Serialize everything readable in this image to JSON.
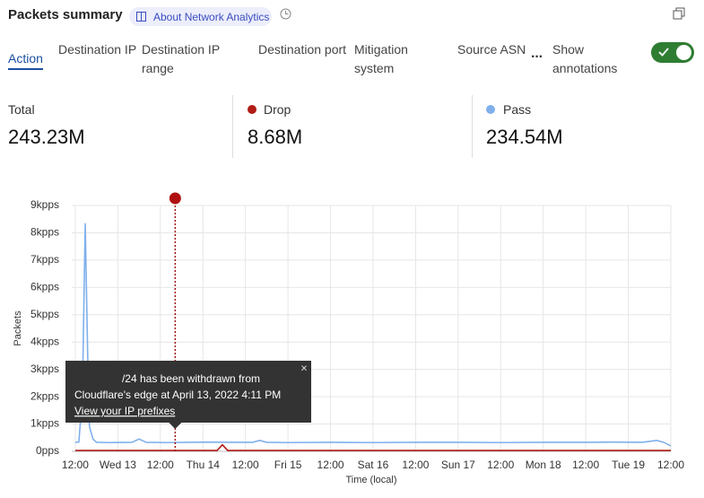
{
  "header": {
    "title": "Packets summary",
    "link": "About Network Analytics"
  },
  "tabs": [
    "Action",
    "Destination IP",
    "Destination IP range",
    "Destination port",
    "Mitigation system",
    "Source ASN"
  ],
  "toggle_label": "Show annotations",
  "summary": {
    "total_label": "Total",
    "total": "243.23M",
    "drop": "8.68M",
    "pass": "234.54M"
  },
  "chart_data": {
    "type": "line",
    "y_label": "Packets",
    "x_label": "Time (local)",
    "xlim": [
      -1,
      168
    ],
    "xticks": [
      {
        "value": 0,
        "label": "12:00"
      },
      {
        "value": 12,
        "label": "Wed 13"
      },
      {
        "value": 24,
        "label": "12:00"
      },
      {
        "value": 36,
        "label": "Thu 14"
      },
      {
        "value": 48,
        "label": "12:00"
      },
      {
        "value": 60,
        "label": "Fri 15"
      },
      {
        "value": 72,
        "label": "12:00"
      },
      {
        "value": 84,
        "label": "Sat 16"
      },
      {
        "value": 96,
        "label": "12:00"
      },
      {
        "value": 108,
        "label": "Sun 17"
      },
      {
        "value": 120,
        "label": "12:00"
      },
      {
        "value": 132,
        "label": "Mon 18"
      },
      {
        "value": 144,
        "label": "12:00"
      },
      {
        "value": 156,
        "label": "Tue 19"
      },
      {
        "value": 168,
        "label": "12:00"
      }
    ],
    "ylim": [
      0,
      9000
    ],
    "yticks": [
      {
        "value": 0,
        "label": "0pps"
      },
      {
        "value": 1000,
        "label": "1kpps"
      },
      {
        "value": 2000,
        "label": "2kpps"
      },
      {
        "value": 3000,
        "label": "3kpps"
      },
      {
        "value": 4000,
        "label": "4kpps"
      },
      {
        "value": 5000,
        "label": "5kpps"
      },
      {
        "value": 6000,
        "label": "6kpps"
      },
      {
        "value": 7000,
        "label": "7kpps"
      },
      {
        "value": 8000,
        "label": "8kpps"
      },
      {
        "value": 9000,
        "label": "9kpps"
      }
    ],
    "grid": true,
    "series": [
      {
        "name": "Drop",
        "color": "#b01c16",
        "x": [
          0,
          12,
          24,
          36,
          40,
          41.5,
          43,
          48,
          60,
          72,
          84,
          96,
          108,
          120,
          132,
          144,
          156,
          168
        ],
        "values": [
          30,
          30,
          30,
          30,
          30,
          240,
          30,
          30,
          30,
          30,
          30,
          30,
          30,
          30,
          30,
          30,
          30,
          30
        ]
      },
      {
        "name": "Pass",
        "color": "#7fb0ec",
        "x": [
          0,
          1,
          2,
          2.8,
          3.5,
          4,
          5,
          6,
          10,
          16,
          18,
          20,
          26,
          32,
          38,
          44,
          50,
          52,
          54,
          60,
          72,
          84,
          96,
          108,
          120,
          132,
          144,
          152,
          160,
          164,
          166,
          168
        ],
        "values": [
          330,
          340,
          2000,
          8350,
          3500,
          900,
          450,
          330,
          320,
          330,
          450,
          330,
          320,
          330,
          340,
          330,
          330,
          400,
          330,
          320,
          330,
          320,
          330,
          330,
          320,
          330,
          330,
          340,
          330,
          400,
          330,
          200
        ]
      }
    ],
    "annotation": {
      "x": 28.18,
      "lines": [
        "/24 has been withdrawn from",
        "Cloudflare's edge at April 13, 2022 4:11 PM"
      ],
      "link": "View your IP prefixes"
    }
  }
}
